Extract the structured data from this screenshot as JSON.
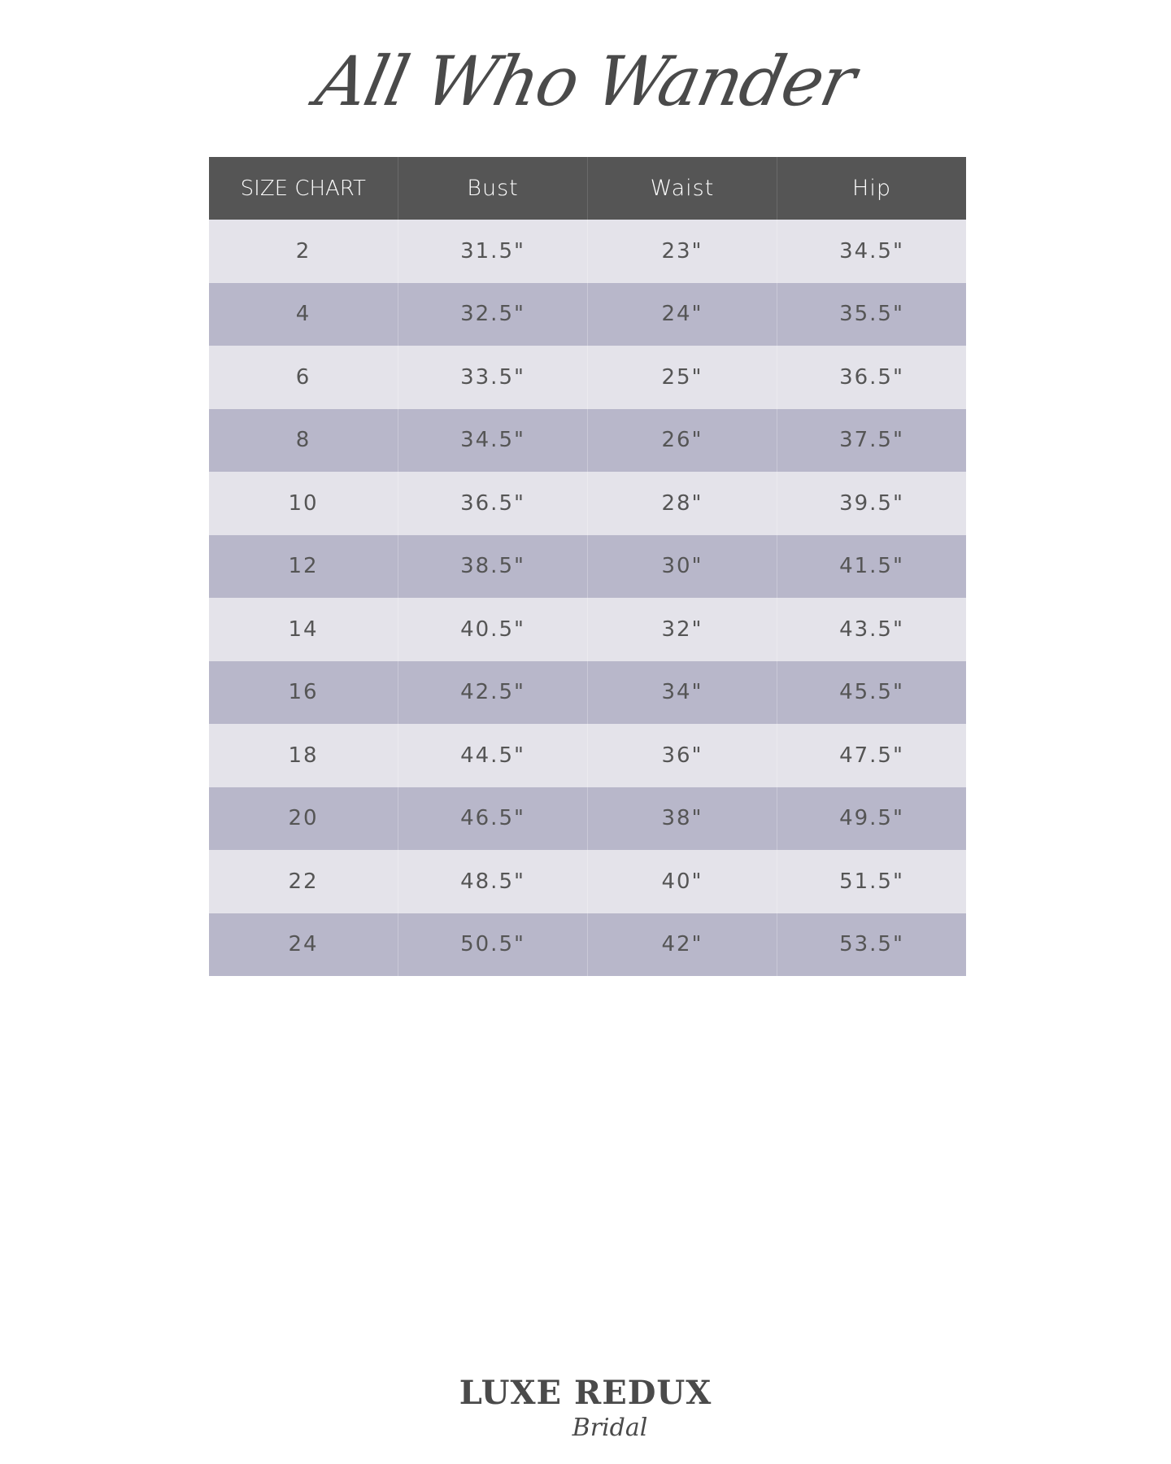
{
  "title": "All Who Wander",
  "table": {
    "headers": [
      "SIZE CHART",
      "Bust",
      "Waist",
      "Hip"
    ],
    "rows": [
      [
        "2",
        "31.5\"",
        "23\"",
        "34.5\""
      ],
      [
        "4",
        "32.5\"",
        "24\"",
        "35.5\""
      ],
      [
        "6",
        "33.5\"",
        "25\"",
        "36.5\""
      ],
      [
        "8",
        "34.5\"",
        "26\"",
        "37.5\""
      ],
      [
        "10",
        "36.5\"",
        "28\"",
        "39.5\""
      ],
      [
        "12",
        "38.5\"",
        "30\"",
        "41.5\""
      ],
      [
        "14",
        "40.5\"",
        "32\"",
        "43.5\""
      ],
      [
        "16",
        "42.5\"",
        "34\"",
        "45.5\""
      ],
      [
        "18",
        "44.5\"",
        "36\"",
        "47.5\""
      ],
      [
        "20",
        "46.5\"",
        "38\"",
        "49.5\""
      ],
      [
        "22",
        "48.5\"",
        "40\"",
        "51.5\""
      ],
      [
        "24",
        "50.5\"",
        "42\"",
        "53.5\""
      ]
    ]
  },
  "logo": {
    "main": "LUXE REDUX",
    "sub": "Bridal"
  },
  "colors": {
    "header_bg": "#555555",
    "row_light": "#e4e3ea",
    "row_dark": "#b8b7ca",
    "text": "#555555"
  }
}
